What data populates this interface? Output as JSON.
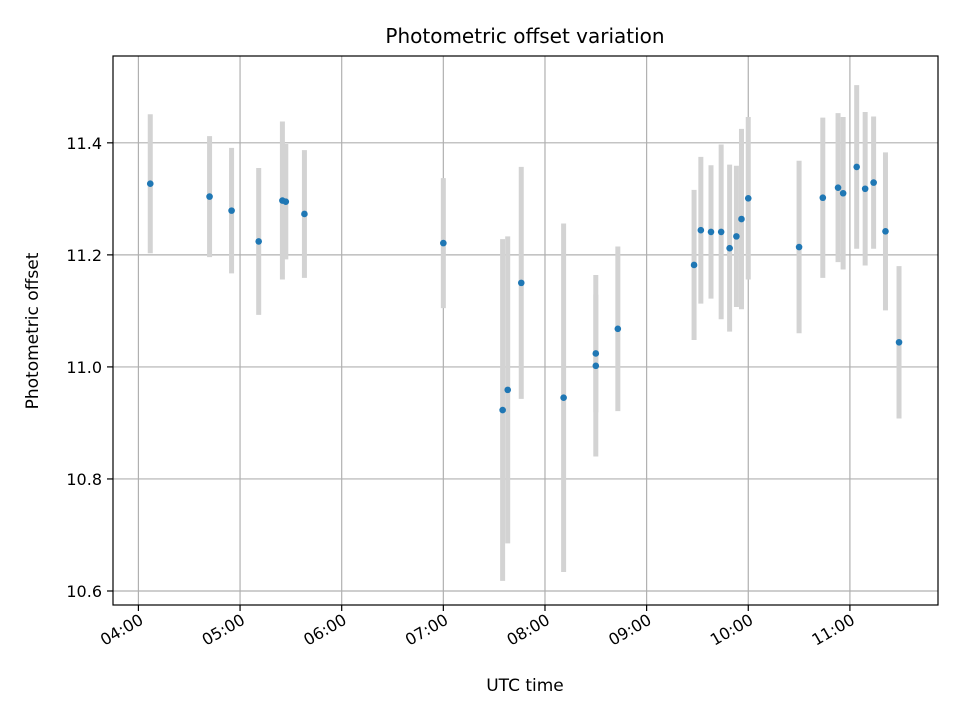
{
  "chart_data": {
    "type": "scatter",
    "title": "Photometric offset variation",
    "xlabel": "UTC time",
    "ylabel": "Photometric offset",
    "x_ticks": [
      "04:00",
      "05:00",
      "06:00",
      "07:00",
      "08:00",
      "09:00",
      "10:00",
      "11:00"
    ],
    "y_ticks": [
      "10.6",
      "10.8",
      "11.0",
      "11.2",
      "11.4"
    ],
    "xlim": [
      "03:45",
      "11:52"
    ],
    "ylim": [
      10.575,
      11.555
    ],
    "grid": true,
    "marker_color": "#1f77b4",
    "errorbar_color": "#d3d3d3",
    "points": [
      {
        "t": "04:07",
        "y": 11.327,
        "err": 0.124
      },
      {
        "t": "04:42",
        "y": 11.304,
        "err": 0.108
      },
      {
        "t": "04:55",
        "y": 11.279,
        "err": 0.112
      },
      {
        "t": "05:11",
        "y": 11.224,
        "err": 0.131
      },
      {
        "t": "05:25",
        "y": 11.297,
        "err": 0.141
      },
      {
        "t": "05:27",
        "y": 11.295,
        "err": 0.103
      },
      {
        "t": "05:38",
        "y": 11.273,
        "err": 0.114
      },
      {
        "t": "07:00",
        "y": 11.221,
        "err": 0.116
      },
      {
        "t": "07:35",
        "y": 10.923,
        "err": 0.305
      },
      {
        "t": "07:38",
        "y": 10.959,
        "err": 0.274
      },
      {
        "t": "07:46",
        "y": 11.15,
        "err": 0.207
      },
      {
        "t": "08:11",
        "y": 10.945,
        "err": 0.311
      },
      {
        "t": "08:30",
        "y": 11.024,
        "err": 0.105
      },
      {
        "t": "08:30",
        "y": 11.002,
        "err": 0.162
      },
      {
        "t": "08:43",
        "y": 11.068,
        "err": 0.147
      },
      {
        "t": "09:28",
        "y": 11.182,
        "err": 0.134
      },
      {
        "t": "09:32",
        "y": 11.244,
        "err": 0.131
      },
      {
        "t": "09:38",
        "y": 11.241,
        "err": 0.119
      },
      {
        "t": "09:44",
        "y": 11.241,
        "err": 0.156
      },
      {
        "t": "09:49",
        "y": 11.212,
        "err": 0.149
      },
      {
        "t": "09:53",
        "y": 11.233,
        "err": 0.126
      },
      {
        "t": "09:56",
        "y": 11.264,
        "err": 0.161
      },
      {
        "t": "10:00",
        "y": 11.301,
        "err": 0.145
      },
      {
        "t": "10:30",
        "y": 11.214,
        "err": 0.154
      },
      {
        "t": "10:44",
        "y": 11.302,
        "err": 0.143
      },
      {
        "t": "10:53",
        "y": 11.32,
        "err": 0.133
      },
      {
        "t": "10:56",
        "y": 11.31,
        "err": 0.136
      },
      {
        "t": "11:04",
        "y": 11.357,
        "err": 0.146
      },
      {
        "t": "11:09",
        "y": 11.318,
        "err": 0.137
      },
      {
        "t": "11:14",
        "y": 11.329,
        "err": 0.118
      },
      {
        "t": "11:21",
        "y": 11.242,
        "err": 0.141
      },
      {
        "t": "11:29",
        "y": 11.044,
        "err": 0.136
      }
    ]
  }
}
